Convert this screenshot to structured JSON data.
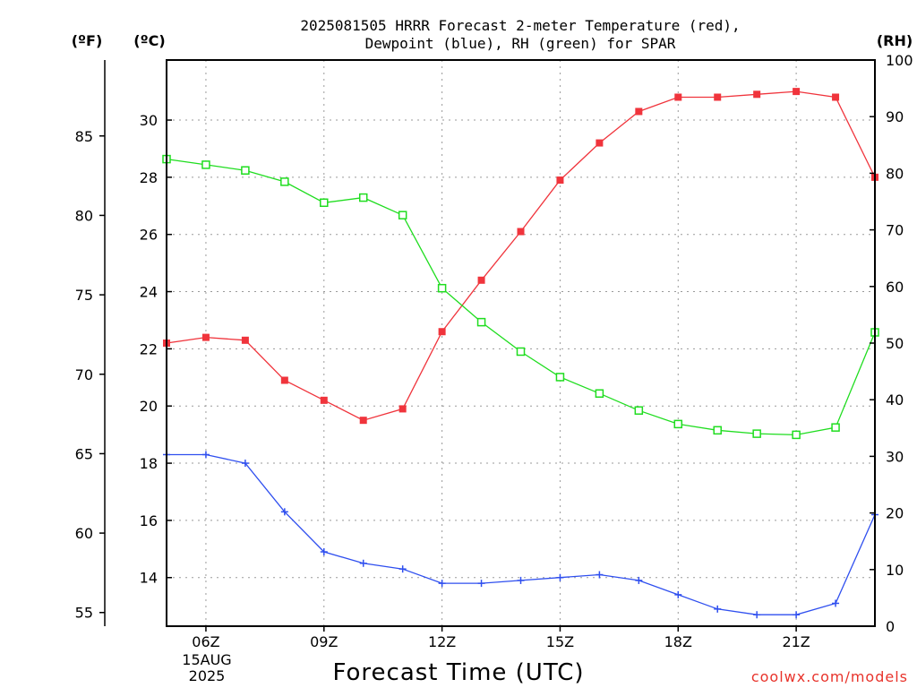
{
  "chart_data": {
    "type": "line",
    "title_line1": "2025081505 HRRR Forecast 2-meter Temperature (red),",
    "title_line2": "Dewpoint (blue), RH (green) for SPAR",
    "xlabel": "Forecast Time (UTC)",
    "unit_left_f": "(ºF)",
    "unit_left_c": "(ºC)",
    "unit_right": "(RH)",
    "credit": "coolwx.com/models",
    "date_label_line1": "15AUG",
    "date_label_line2": "2025",
    "x_hours": [
      5,
      6,
      7,
      8,
      9,
      10,
      11,
      12,
      13,
      14,
      15,
      16,
      17,
      18,
      19,
      20,
      21,
      22,
      23
    ],
    "x_ticks": [
      {
        "hour": 6,
        "label": "06Z"
      },
      {
        "hour": 9,
        "label": "09Z"
      },
      {
        "hour": 12,
        "label": "12Z"
      },
      {
        "hour": 15,
        "label": "15Z"
      },
      {
        "hour": 18,
        "label": "18Z"
      },
      {
        "hour": 21,
        "label": "21Z"
      }
    ],
    "xlim": [
      5,
      23
    ],
    "ylim_c": [
      12.3,
      32.1
    ],
    "ylim_rh": [
      0,
      100
    ],
    "yticks_c": [
      14,
      16,
      18,
      20,
      22,
      24,
      26,
      28,
      30
    ],
    "yticks_f": [
      55,
      60,
      65,
      70,
      75,
      80,
      85
    ],
    "yticks_rh": [
      0,
      10,
      20,
      30,
      40,
      50,
      60,
      70,
      80,
      90,
      100
    ],
    "grid": true,
    "series": [
      {
        "name": "Temperature",
        "axis": "c",
        "color": "#f0343c",
        "marker": "filled-square",
        "values": [
          22.2,
          22.4,
          22.3,
          20.9,
          20.2,
          19.5,
          19.9,
          22.6,
          24.4,
          26.1,
          27.9,
          29.2,
          30.3,
          30.8,
          30.8,
          30.9,
          31.0,
          30.8,
          28.0
        ]
      },
      {
        "name": "Dewpoint",
        "axis": "c",
        "color": "#2f4fef",
        "marker": "plus",
        "values": [
          18.3,
          18.3,
          18.0,
          16.3,
          14.9,
          14.5,
          14.3,
          13.8,
          13.8,
          13.9,
          14.0,
          14.1,
          13.9,
          13.4,
          12.9,
          12.7,
          12.7,
          13.1,
          16.2
        ]
      },
      {
        "name": "RH",
        "axis": "rh",
        "color": "#1fdd1f",
        "marker": "open-square",
        "values": [
          82.5,
          81.5,
          80.5,
          78.5,
          74.8,
          75.7,
          72.6,
          59.7,
          53.7,
          48.5,
          44.0,
          41.1,
          38.1,
          35.7,
          34.6,
          34.0,
          33.8,
          35.1,
          51.9
        ]
      }
    ]
  }
}
